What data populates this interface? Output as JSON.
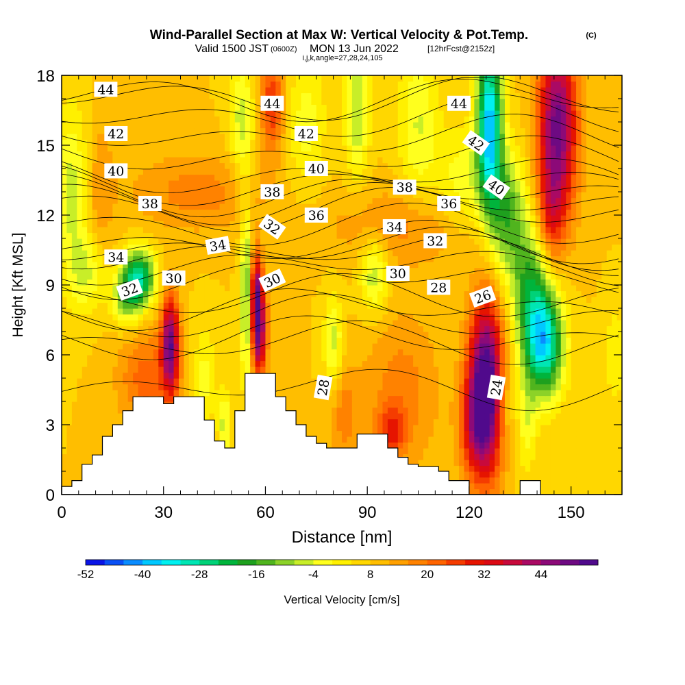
{
  "title": {
    "main": "Wind-Parallel Section at Max W: Vertical Velocity & Pot.Temp.",
    "copyright": "(C)",
    "valid_prefix": "Valid 1500 JST",
    "valid_utc": "(0600Z)",
    "valid_date": "MON 13 Jun 2022",
    "forecast": "[12hrFcst@2152z]",
    "indices": "i,j,k,angle=27,28,24,105"
  },
  "chart_data": {
    "type": "heatmap",
    "xlabel": "Distance [nm]",
    "ylabel": "Height [Kft MSL]",
    "xlim": [
      0,
      165
    ],
    "ylim": [
      0,
      18
    ],
    "x_ticks": [
      0,
      30,
      60,
      90,
      120,
      150
    ],
    "y_ticks": [
      0,
      3,
      6,
      9,
      12,
      15,
      18
    ],
    "fill_variable": "Vertical Velocity",
    "colorbar": {
      "label": "Vertical Velocity [cm/s]",
      "tick_labels": [
        "-52",
        "-40",
        "-28",
        "-16",
        "-4",
        "8",
        "20",
        "32",
        "44"
      ],
      "colors": [
        "#0a14e6",
        "#0a50f5",
        "#0a8cff",
        "#00c8ff",
        "#00f0f0",
        "#00e6b4",
        "#00d278",
        "#00b43c",
        "#1ea01e",
        "#50b41e",
        "#8cd228",
        "#c8ee28",
        "#ffff1e",
        "#fff000",
        "#ffd700",
        "#ffbe00",
        "#ffa000",
        "#ff8200",
        "#ff6400",
        "#f53c00",
        "#e61400",
        "#dc0a14",
        "#c80a3c",
        "#aa0a64",
        "#8c0a78",
        "#6e0a82",
        "#500a8c"
      ]
    },
    "terrain_kft": [
      [
        0,
        0.35
      ],
      [
        3,
        0.35
      ],
      [
        3,
        0.6
      ],
      [
        6,
        0.6
      ],
      [
        6,
        1.3
      ],
      [
        9,
        1.3
      ],
      [
        9,
        1.7
      ],
      [
        12,
        1.7
      ],
      [
        12,
        2.5
      ],
      [
        15,
        2.5
      ],
      [
        15,
        3.0
      ],
      [
        18,
        3.0
      ],
      [
        18,
        3.6
      ],
      [
        21,
        3.6
      ],
      [
        21,
        4.2
      ],
      [
        30,
        4.2
      ],
      [
        30,
        3.9
      ],
      [
        33,
        3.9
      ],
      [
        33,
        4.2
      ],
      [
        42,
        4.2
      ],
      [
        42,
        3.2
      ],
      [
        45,
        3.2
      ],
      [
        45,
        2.3
      ],
      [
        48,
        2.3
      ],
      [
        48,
        2.0
      ],
      [
        51,
        2.0
      ],
      [
        51,
        3.6
      ],
      [
        54,
        3.6
      ],
      [
        54,
        5.2
      ],
      [
        63,
        5.2
      ],
      [
        63,
        4.2
      ],
      [
        66,
        4.2
      ],
      [
        66,
        3.6
      ],
      [
        69,
        3.6
      ],
      [
        69,
        3.0
      ],
      [
        72,
        3.0
      ],
      [
        72,
        2.5
      ],
      [
        75,
        2.5
      ],
      [
        75,
        2.2
      ],
      [
        78,
        2.2
      ],
      [
        78,
        2.0
      ],
      [
        84,
        2.0
      ],
      [
        84,
        2.0
      ],
      [
        87,
        2.0
      ],
      [
        87,
        2.6
      ],
      [
        96,
        2.6
      ],
      [
        96,
        2.0
      ],
      [
        99,
        2.0
      ],
      [
        99,
        1.6
      ],
      [
        102,
        1.6
      ],
      [
        102,
        1.3
      ],
      [
        105,
        1.3
      ],
      [
        105,
        1.2
      ],
      [
        111,
        1.2
      ],
      [
        111,
        1.0
      ],
      [
        114,
        1.0
      ],
      [
        114,
        0.6
      ],
      [
        120,
        0.6
      ],
      [
        120,
        0.0
      ],
      [
        135,
        0.0
      ],
      [
        135,
        0.6
      ],
      [
        141,
        0.6
      ],
      [
        141,
        0.0
      ],
      [
        165,
        0.0
      ]
    ],
    "background_w": 4,
    "w_features": [
      {
        "x": 32,
        "y": 6.5,
        "sx": 1.8,
        "sy": 1.5,
        "w": 40
      },
      {
        "x": 25,
        "y": 5.0,
        "sx": 6,
        "sy": 1.6,
        "w": 14
      },
      {
        "x": 58,
        "y": 7.2,
        "sx": 1.6,
        "sy": 1.5,
        "w": 42
      },
      {
        "x": 57,
        "y": 9.0,
        "sx": 1.2,
        "sy": 1.2,
        "w": 24
      },
      {
        "x": 125,
        "y": 4.6,
        "sx": 3.5,
        "sy": 2.6,
        "w": 54
      },
      {
        "x": 121,
        "y": 3.0,
        "sx": 3,
        "sy": 1.5,
        "w": 16
      },
      {
        "x": 146,
        "y": 15.8,
        "sx": 4,
        "sy": 2.8,
        "w": 42
      },
      {
        "x": 144,
        "y": 12.0,
        "sx": 2.5,
        "sy": 1.5,
        "w": 14
      },
      {
        "x": 62,
        "y": 16.8,
        "sx": 2.5,
        "sy": 1.5,
        "w": 20
      },
      {
        "x": 40,
        "y": 13.0,
        "sx": 14,
        "sy": 1.2,
        "w": 10
      },
      {
        "x": 105,
        "y": 11.5,
        "sx": 18,
        "sy": 1.2,
        "w": 10
      },
      {
        "x": 100,
        "y": 4.5,
        "sx": 8,
        "sy": 2.5,
        "w": 10
      },
      {
        "x": 97,
        "y": 2.7,
        "sx": 3,
        "sy": 0.8,
        "w": 16
      },
      {
        "x": 83,
        "y": 3.5,
        "sx": 3,
        "sy": 1.5,
        "w": 10
      },
      {
        "x": 11,
        "y": 13.0,
        "sx": 3,
        "sy": 2.5,
        "w": 8
      },
      {
        "x": 23,
        "y": 9.3,
        "sx": 3.2,
        "sy": 0.9,
        "w": -34
      },
      {
        "x": 19,
        "y": 8.5,
        "sx": 3,
        "sy": 0.9,
        "w": -18
      },
      {
        "x": 54.5,
        "y": 8.5,
        "sx": 1.3,
        "sy": 2.5,
        "w": -24
      },
      {
        "x": 48,
        "y": 3.0,
        "sx": 1.3,
        "sy": 1.0,
        "w": -14
      },
      {
        "x": 42,
        "y": 5.0,
        "sx": 2.5,
        "sy": 1.5,
        "w": -10
      },
      {
        "x": 142,
        "y": 6.5,
        "sx": 4,
        "sy": 1.6,
        "w": -42
      },
      {
        "x": 138,
        "y": 9.0,
        "sx": 4,
        "sy": 2.0,
        "w": -22
      },
      {
        "x": 126,
        "y": 16.0,
        "sx": 2.6,
        "sy": 2.5,
        "w": -46
      },
      {
        "x": 131,
        "y": 12.0,
        "sx": 4,
        "sy": 1.8,
        "w": -24
      },
      {
        "x": 118,
        "y": 13.0,
        "sx": 6,
        "sy": 1.8,
        "w": -12
      },
      {
        "x": 105,
        "y": 16.0,
        "sx": 4,
        "sy": 2.5,
        "w": -12
      },
      {
        "x": 87,
        "y": 16.5,
        "sx": 2.5,
        "sy": 2.0,
        "w": -16
      },
      {
        "x": 53,
        "y": 16.0,
        "sx": 2.5,
        "sy": 2.0,
        "w": -14
      },
      {
        "x": 72,
        "y": 16.0,
        "sx": 4,
        "sy": 2.0,
        "w": -10
      },
      {
        "x": 92,
        "y": 9.5,
        "sx": 3,
        "sy": 1.2,
        "w": -16
      },
      {
        "x": 80,
        "y": 6.5,
        "sx": 2,
        "sy": 1.5,
        "w": -14
      },
      {
        "x": 3,
        "y": 13.0,
        "sx": 4,
        "sy": 2.5,
        "w": -14
      },
      {
        "x": 8,
        "y": 9.5,
        "sx": 4,
        "sy": 1.2,
        "w": -12
      },
      {
        "x": 163,
        "y": 6.0,
        "sx": 2,
        "sy": 1.5,
        "w": -8
      },
      {
        "x": 137,
        "y": 3.0,
        "sx": 2,
        "sy": 1.5,
        "w": -10
      },
      {
        "x": 130,
        "y": 4.0,
        "sx": 2,
        "sy": 1.2,
        "w": -8
      }
    ],
    "theta_labels": [
      {
        "text": "44",
        "x": 13,
        "y": 17.4,
        "angle": 0
      },
      {
        "text": "44",
        "x": 62,
        "y": 16.8,
        "angle": 0
      },
      {
        "text": "44",
        "x": 117,
        "y": 16.8,
        "angle": 0
      },
      {
        "text": "42",
        "x": 16,
        "y": 15.5,
        "angle": 0
      },
      {
        "text": "42",
        "x": 72,
        "y": 15.5,
        "angle": 0
      },
      {
        "text": "42",
        "x": 122,
        "y": 15.1,
        "angle": 35
      },
      {
        "text": "40",
        "x": 16,
        "y": 13.9,
        "angle": 0
      },
      {
        "text": "40",
        "x": 75,
        "y": 14.0,
        "angle": 0
      },
      {
        "text": "40",
        "x": 128,
        "y": 13.2,
        "angle": 35
      },
      {
        "text": "38",
        "x": 26,
        "y": 12.5,
        "angle": 0
      },
      {
        "text": "38",
        "x": 62,
        "y": 13.0,
        "angle": 0
      },
      {
        "text": "38",
        "x": 101,
        "y": 13.2,
        "angle": 0
      },
      {
        "text": "36",
        "x": 75,
        "y": 12.0,
        "angle": 0
      },
      {
        "text": "36",
        "x": 114,
        "y": 12.5,
        "angle": 0
      },
      {
        "text": "34",
        "x": 16,
        "y": 10.2,
        "angle": 0
      },
      {
        "text": "34",
        "x": 46,
        "y": 10.7,
        "angle": -10
      },
      {
        "text": "34",
        "x": 98,
        "y": 11.5,
        "angle": 0
      },
      {
        "text": "32",
        "x": 62,
        "y": 11.5,
        "angle": 35
      },
      {
        "text": "32",
        "x": 110,
        "y": 10.9,
        "angle": 0
      },
      {
        "text": "32",
        "x": 20,
        "y": 8.8,
        "angle": -20
      },
      {
        "text": "30",
        "x": 33,
        "y": 9.3,
        "angle": 0
      },
      {
        "text": "30",
        "x": 62,
        "y": 9.2,
        "angle": -25
      },
      {
        "text": "30",
        "x": 99,
        "y": 9.5,
        "angle": 0
      },
      {
        "text": "28",
        "x": 111,
        "y": 8.9,
        "angle": 0
      },
      {
        "text": "28",
        "x": 77,
        "y": 4.6,
        "angle": -80
      },
      {
        "text": "26",
        "x": 124,
        "y": 8.5,
        "angle": -20
      },
      {
        "text": "24",
        "x": 128,
        "y": 4.6,
        "angle": -80
      }
    ]
  }
}
